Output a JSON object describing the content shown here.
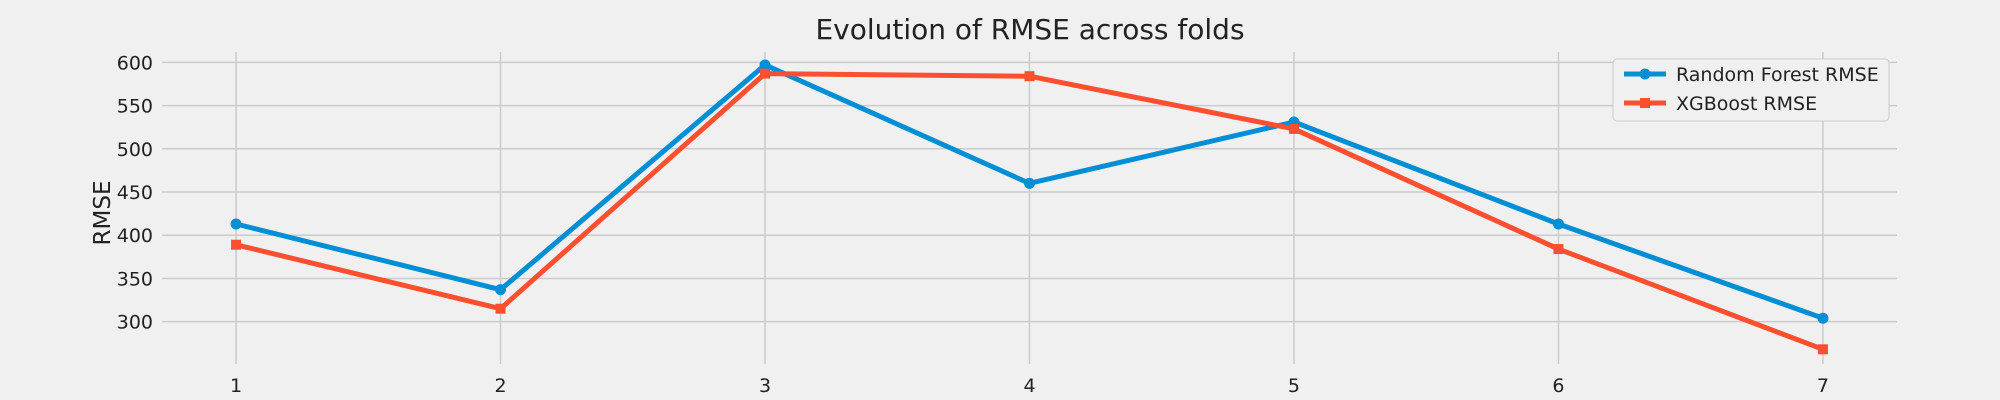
{
  "chart_data": {
    "type": "line",
    "title": "Evolution of RMSE across folds",
    "xlabel": "",
    "ylabel": "RMSE",
    "x": [
      1,
      2,
      3,
      4,
      5,
      6,
      7
    ],
    "xticks": [
      "1",
      "2",
      "3",
      "4",
      "5",
      "6",
      "7"
    ],
    "yticks": [
      300,
      350,
      400,
      450,
      500,
      550,
      600
    ],
    "xlim": [
      0.72,
      7.28
    ],
    "ylim": [
      251,
      612
    ],
    "grid": true,
    "legend_position": "top-right",
    "series": [
      {
        "name": "Random Forest RMSE",
        "values": [
          413,
          337,
          597,
          460,
          531,
          413,
          304
        ],
        "color": "#008fd5",
        "marker": "circle"
      },
      {
        "name": "XGBoost RMSE",
        "values": [
          389,
          315,
          587,
          584,
          523,
          384,
          268
        ],
        "color": "#fc4f30",
        "marker": "square"
      }
    ]
  }
}
